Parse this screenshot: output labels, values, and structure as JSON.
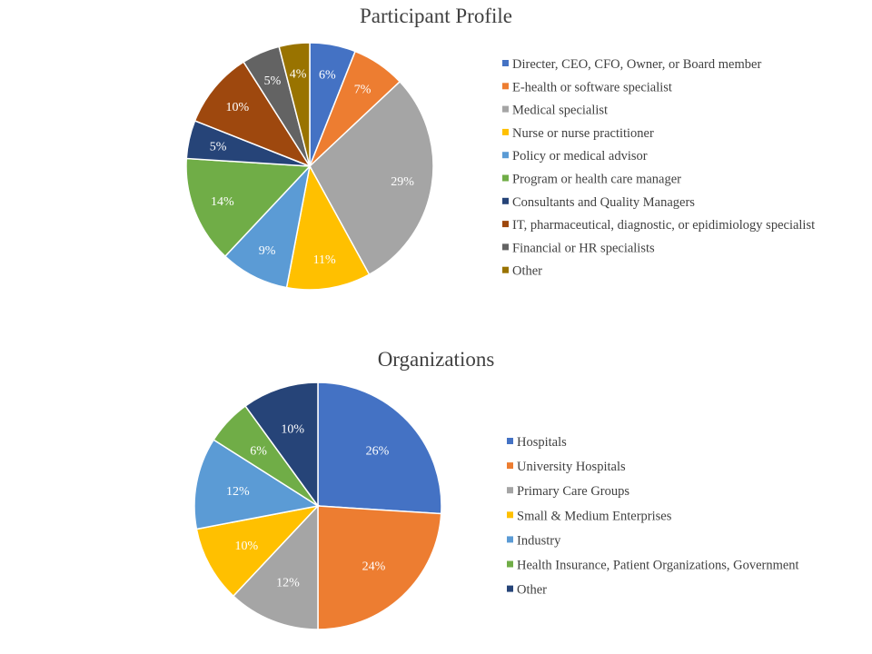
{
  "chart_data": [
    {
      "type": "pie",
      "title": "Participant Profile",
      "legend_position": "right",
      "slices": [
        {
          "label": "Directer, CEO, CFO, Owner, or Board member",
          "value": 6,
          "display": "6%",
          "color": "#4472C4"
        },
        {
          "label": "E-health or software specialist",
          "value": 7,
          "display": "7%",
          "color": "#ED7D31"
        },
        {
          "label": "Medical specialist",
          "value": 29,
          "display": "29%",
          "color": "#A5A5A5"
        },
        {
          "label": "Nurse or nurse practitioner",
          "value": 11,
          "display": "11%",
          "color": "#FFC000"
        },
        {
          "label": "Policy or medical advisor",
          "value": 9,
          "display": "9%",
          "color": "#5B9BD5"
        },
        {
          "label": "Program or health care manager",
          "value": 14,
          "display": "14%",
          "color": "#70AD47"
        },
        {
          "label": "Consultants and Quality Managers",
          "value": 5,
          "display": "5%",
          "color": "#264478"
        },
        {
          "label": "IT, pharmaceutical, diagnostic, or epidimiology specialist",
          "value": 10,
          "display": "10%",
          "color": "#9E480E"
        },
        {
          "label": "Financial or HR specialists",
          "value": 5,
          "display": "5%",
          "color": "#636363"
        },
        {
          "label": "Other",
          "value": 4,
          "display": "4%",
          "color": "#997300"
        }
      ]
    },
    {
      "type": "pie",
      "title": "Organizations",
      "legend_position": "right",
      "slices": [
        {
          "label": "Hospitals",
          "value": 26,
          "display": "26%",
          "color": "#4472C4"
        },
        {
          "label": "University Hospitals",
          "value": 24,
          "display": "24%",
          "color": "#ED7D31"
        },
        {
          "label": "Primary Care Groups",
          "value": 12,
          "display": "12%",
          "color": "#A5A5A5"
        },
        {
          "label": "Small & Medium Enterprises",
          "value": 10,
          "display": "10%",
          "color": "#FFC000"
        },
        {
          "label": "Industry",
          "value": 12,
          "display": "12%",
          "color": "#5B9BD5"
        },
        {
          "label": "Health Insurance, Patient Organizations, Government",
          "value": 6,
          "display": "6%",
          "color": "#70AD47"
        },
        {
          "label": "Other",
          "value": 10,
          "display": "10%",
          "color": "#264478"
        }
      ]
    }
  ]
}
